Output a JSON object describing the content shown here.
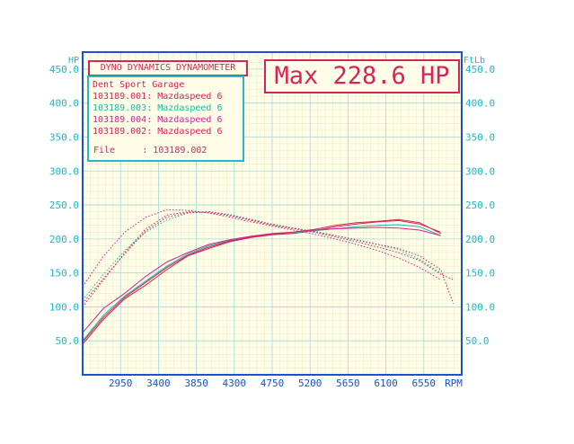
{
  "header": {
    "title": "DYNO DYNAMICS DYNAMOMETER",
    "max_label": "Max 228.6 HP"
  },
  "legend": {
    "garage": "Dent Sport Garage",
    "runs": [
      {
        "label": "103189.001: Mazdaspeed 6",
        "color": "#d6245a"
      },
      {
        "label": "103189.003: Mazdaspeed 6",
        "color": "#1fb8a0"
      },
      {
        "label": "103189.004: Mazdaspeed 6",
        "color": "#d62496"
      },
      {
        "label": "103189.002: Mazdaspeed 6",
        "color": "#d6245a"
      }
    ],
    "file_label": "File",
    "file_value": ": 103189.002"
  },
  "colors": {
    "background": "#fffde8",
    "grid": "#c8ead8",
    "axis": "#1a4fd6",
    "accent": "#d6245a",
    "tick": "#1fb8c0"
  },
  "chart_data": {
    "type": "line",
    "x_unit": "RPM",
    "y_left_unit": "HP",
    "y_right_unit": "FtLb",
    "xlim": [
      2500,
      7000
    ],
    "ylim": [
      0,
      475
    ],
    "x_ticks": [
      2950,
      3400,
      3850,
      4300,
      4750,
      5200,
      5650,
      6100,
      6550
    ],
    "x_tick_labels": [
      "2950",
      "3400",
      "3850",
      "4300",
      "4750",
      "5200",
      "5650",
      "6100",
      "6550",
      "RPM"
    ],
    "y_ticks": [
      50,
      100,
      150,
      200,
      250,
      300,
      350,
      400,
      450
    ],
    "y_left_tick_labels": [
      "50.0",
      "100.0",
      "150.0",
      "200.0",
      "250.0",
      "300.0",
      "350.0",
      "400.0",
      "450.0"
    ],
    "y_right_tick_labels": [
      "50.0",
      "100.0",
      "150.0",
      "200.0",
      "250.0",
      "300.0",
      "350.0",
      "400.0",
      "450.0"
    ],
    "grid": true,
    "series": [
      {
        "run": "103189.001",
        "measure": "HP",
        "style": "solid",
        "color": "#d6245a",
        "x": [
          2500,
          2750,
          3000,
          3250,
          3500,
          3750,
          4000,
          4250,
          4500,
          4750,
          5000,
          5250,
          5500,
          5750,
          6000,
          6250,
          6500,
          6750
        ],
        "y": [
          45,
          82,
          112,
          132,
          155,
          175,
          186,
          196,
          202,
          206,
          208,
          212,
          218,
          222,
          225,
          227,
          222,
          210
        ]
      },
      {
        "run": "103189.003",
        "measure": "HP",
        "style": "solid",
        "color": "#1fb8a0",
        "x": [
          2500,
          2750,
          3000,
          3250,
          3500,
          3750,
          4000,
          4250,
          4500,
          4750,
          5000,
          5250,
          5500,
          5750,
          6000,
          6250,
          6500,
          6750
        ],
        "y": [
          50,
          88,
          116,
          138,
          160,
          178,
          190,
          198,
          203,
          207,
          209,
          212,
          215,
          218,
          220,
          221,
          218,
          205
        ]
      },
      {
        "run": "103189.004",
        "measure": "HP",
        "style": "solid",
        "color": "#d62496",
        "x": [
          2500,
          2750,
          3000,
          3250,
          3500,
          3750,
          4000,
          4250,
          4500,
          4750,
          5000,
          5250,
          5500,
          5750,
          6000,
          6250,
          6500,
          6750
        ],
        "y": [
          62,
          98,
          120,
          145,
          166,
          180,
          192,
          199,
          204,
          208,
          210,
          213,
          215,
          216,
          217,
          216,
          213,
          205
        ]
      },
      {
        "run": "103189.002",
        "measure": "HP",
        "style": "solid",
        "color": "#d6245a",
        "x": [
          2500,
          2750,
          3000,
          3250,
          3500,
          3750,
          4000,
          4250,
          4500,
          4750,
          5000,
          5250,
          5500,
          5750,
          6000,
          6250,
          6500,
          6750
        ],
        "y": [
          48,
          85,
          114,
          136,
          158,
          176,
          188,
          197,
          203,
          207,
          210,
          214,
          220,
          224,
          226,
          228.6,
          224,
          208
        ]
      },
      {
        "run": "103189.001",
        "measure": "FtLb",
        "style": "dotted",
        "color": "#d6245a",
        "x": [
          2500,
          2750,
          3000,
          3250,
          3500,
          3750,
          4000,
          4250,
          4500,
          4750,
          5000,
          5250,
          5500,
          5750,
          6000,
          6250,
          6500,
          6750,
          6900
        ],
        "y": [
          100,
          140,
          180,
          215,
          235,
          240,
          239,
          234,
          227,
          220,
          215,
          210,
          203,
          196,
          188,
          180,
          168,
          148,
          140
        ]
      },
      {
        "run": "103189.003",
        "measure": "FtLb",
        "style": "dotted",
        "color": "#1fb8a0",
        "x": [
          2500,
          2750,
          3000,
          3250,
          3500,
          3750,
          4000,
          4250,
          4500,
          4750,
          5000,
          5250,
          5500,
          5750,
          6000,
          6250,
          6500,
          6750
        ],
        "y": [
          110,
          148,
          183,
          210,
          228,
          238,
          240,
          236,
          229,
          222,
          216,
          210,
          205,
          198,
          192,
          184,
          170,
          150
        ]
      },
      {
        "run": "103189.004",
        "measure": "FtLb",
        "style": "dotted",
        "color": "#d62496",
        "x": [
          2500,
          2750,
          3000,
          3250,
          3500,
          3750,
          4000,
          4250,
          4500,
          4750,
          5000,
          5250,
          5500,
          5750,
          6000,
          6250,
          6500,
          6750
        ],
        "y": [
          130,
          175,
          210,
          232,
          243,
          242,
          238,
          232,
          225,
          219,
          213,
          207,
          200,
          192,
          183,
          172,
          158,
          140
        ]
      },
      {
        "run": "103189.002",
        "measure": "FtLb",
        "style": "dotted",
        "color": "#d6245a",
        "x": [
          2500,
          2750,
          3000,
          3250,
          3500,
          3750,
          4000,
          4250,
          4500,
          4750,
          5000,
          5250,
          5500,
          5750,
          6000,
          6250,
          6500,
          6750,
          6900
        ],
        "y": [
          105,
          142,
          178,
          212,
          232,
          239,
          240,
          235,
          228,
          221,
          216,
          211,
          205,
          199,
          192,
          186,
          175,
          155,
          105
        ]
      }
    ]
  }
}
